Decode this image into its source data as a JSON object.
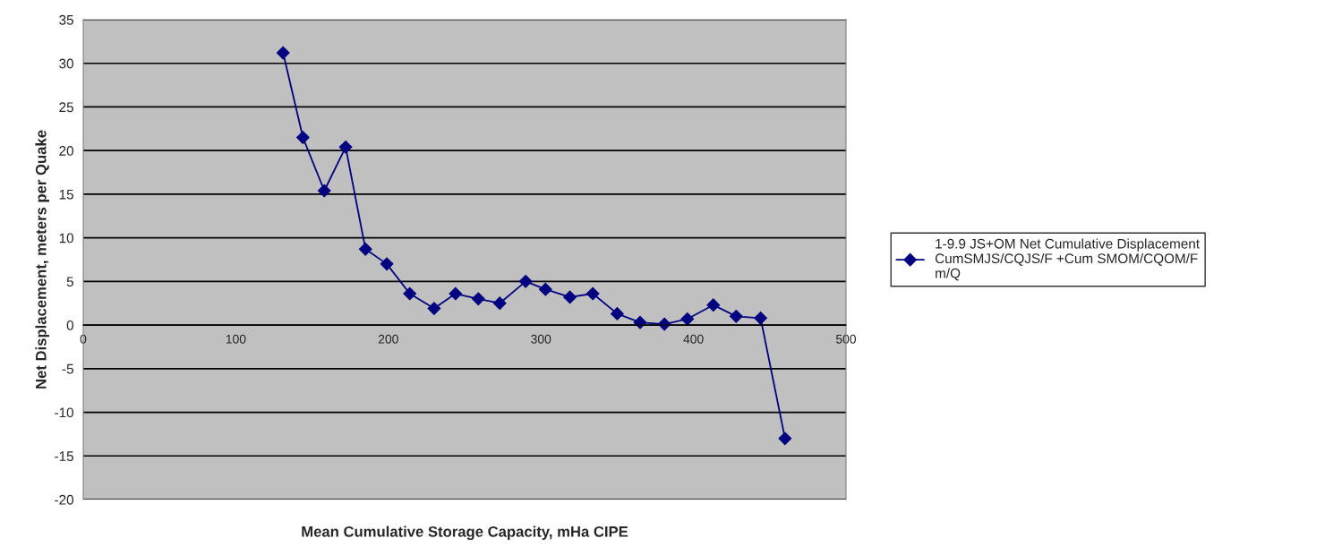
{
  "chart_data": {
    "type": "line",
    "xlabel": "Mean Cumulative Storage Capacity, mHa CIPE",
    "ylabel": "Net Displacement, meters per Quake",
    "x": [
      131,
      144,
      158,
      172,
      185,
      199,
      214,
      230,
      244,
      259,
      273,
      290,
      303,
      319,
      334,
      350,
      365,
      381,
      396,
      413,
      428,
      444,
      460
    ],
    "series": [
      {
        "name": "1-9.9 JS+OM Net Cumulative Displacement\nCumSMJS/CQJS/F +Cum SMOM/CQOM/F\nm/Q",
        "color": "#000080",
        "values": [
          31.2,
          21.5,
          15.4,
          20.4,
          8.7,
          7.0,
          3.6,
          1.9,
          3.6,
          3.0,
          2.5,
          5.0,
          4.1,
          3.2,
          3.6,
          1.3,
          0.3,
          0.1,
          0.7,
          2.3,
          1.0,
          0.8,
          -13.0
        ]
      }
    ],
    "xlim": [
      0,
      500
    ],
    "xticks": [
      0,
      100,
      200,
      300,
      400,
      500
    ],
    "ylim": [
      -20,
      35
    ],
    "yticks": [
      -20,
      -15,
      -10,
      -5,
      0,
      5,
      10,
      15,
      20,
      25,
      30,
      35
    ],
    "grid": "y",
    "legend": "right",
    "marker": "diamond",
    "line_style": "solid"
  }
}
